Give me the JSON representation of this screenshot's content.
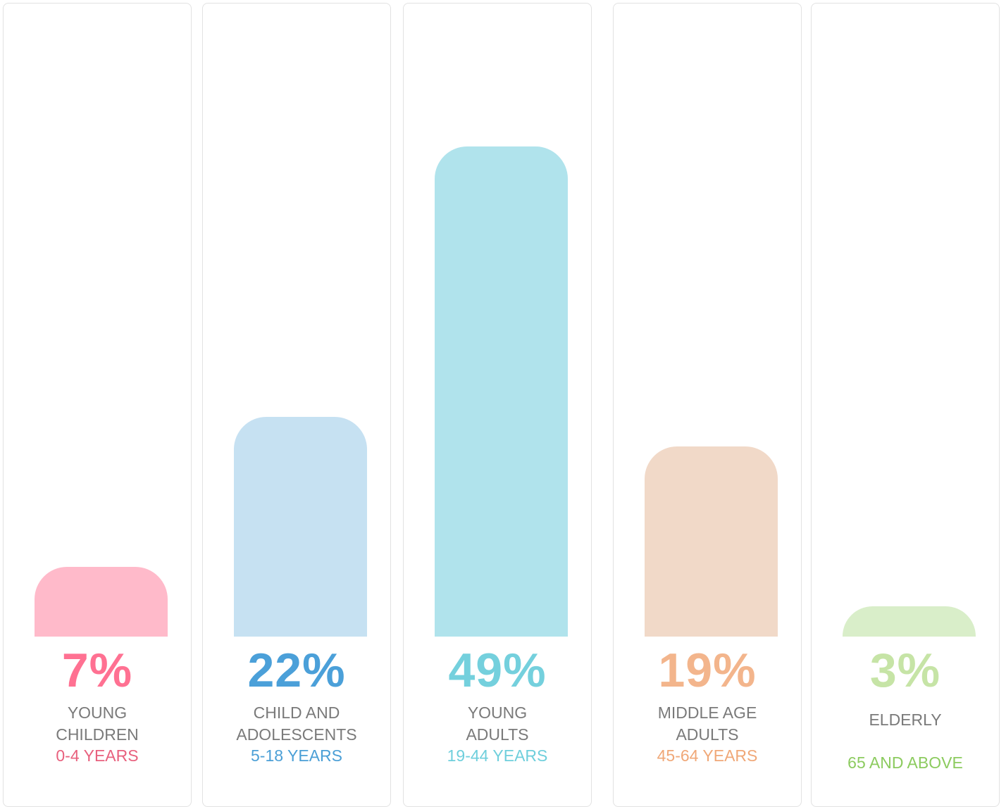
{
  "chart_data": {
    "type": "bar",
    "categories": [
      "YOUNG\nCHILDREN",
      "CHILD AND\nADOLESCENTS",
      "YOUNG\nADULTS",
      "MIDDLE AGE\nADULTS",
      "ELDERLY"
    ],
    "age_ranges": [
      "0-4 YEARS",
      "5-18 YEARS",
      "19-44 YEARS",
      "45-64 YEARS",
      "65 AND ABOVE"
    ],
    "values": [
      7,
      22,
      49,
      19,
      3
    ],
    "value_labels": [
      "7%",
      "22%",
      "49%",
      "19%",
      "3%"
    ],
    "colors": [
      "#ffbaca",
      "#c6e1f2",
      "#b0e3ec",
      "#f1d9c8",
      "#d9eec9"
    ],
    "label_colors": [
      "#ff7192",
      "#4ba0d9",
      "#74d0dd",
      "#f3b58c",
      "#c6e4a6"
    ],
    "age_colors": [
      "#e8617e",
      "#4b9fd6",
      "#6fcfdc",
      "#f0a878",
      "#8ccb5f"
    ],
    "ylim": [
      0,
      50
    ]
  }
}
